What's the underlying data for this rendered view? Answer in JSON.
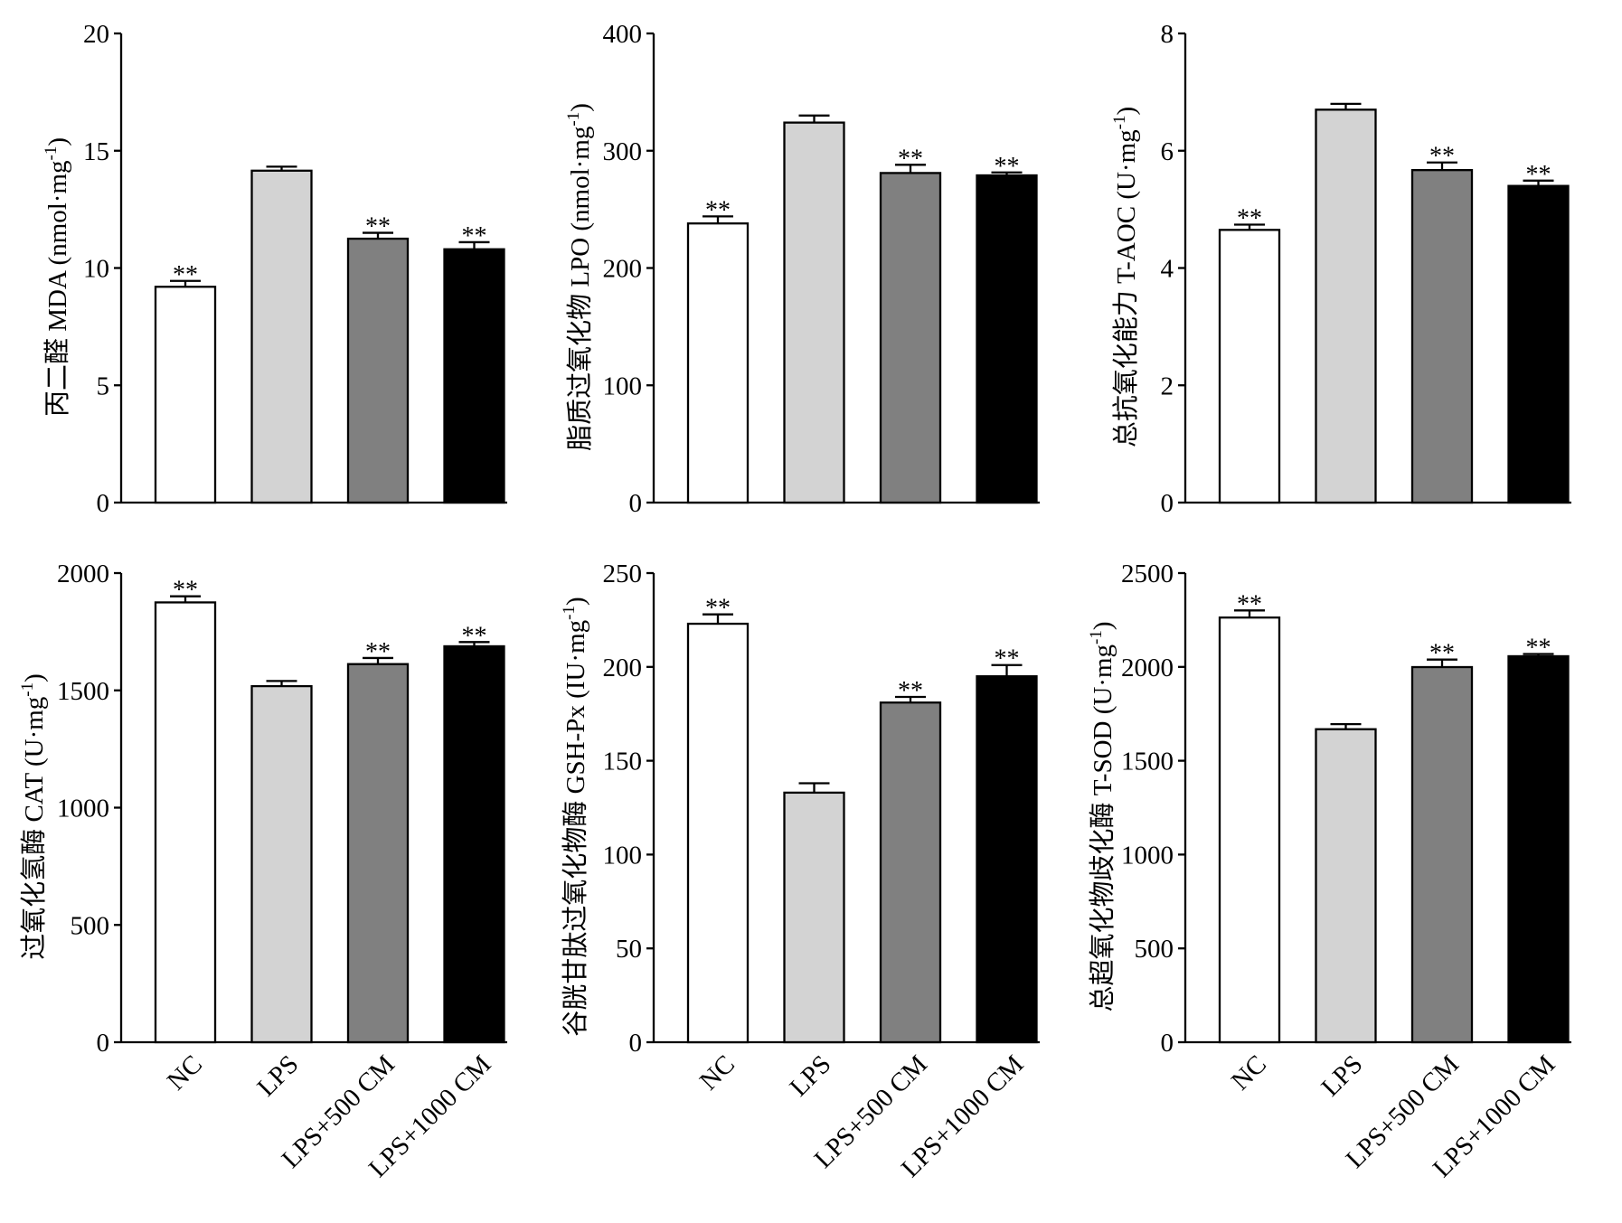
{
  "categories": [
    "NC",
    "LPS",
    "LPS+500 CM",
    "LPS+1000 CM"
  ],
  "bar_colors": [
    "#ffffff",
    "#d3d3d3",
    "#808080",
    "#000000"
  ],
  "chart_data": [
    {
      "type": "bar",
      "ylabel": {
        "text": "丙二醛 MDA (nmol·mg",
        "sup": "-1",
        "tail": ")"
      },
      "ylim": [
        0,
        20
      ],
      "yticks": [
        0,
        5,
        10,
        15,
        20
      ],
      "values": [
        9.2,
        14.15,
        11.25,
        10.8
      ],
      "errors": [
        0.25,
        0.17,
        0.25,
        0.3
      ],
      "significance": [
        "**",
        "",
        "**",
        "**"
      ]
    },
    {
      "type": "bar",
      "ylabel": {
        "text": "脂质过氧化物 LPO (nmol·mg",
        "sup": "-1",
        "tail": ")"
      },
      "ylim": [
        0,
        400
      ],
      "yticks": [
        0,
        100,
        200,
        300,
        400
      ],
      "values": [
        238,
        324,
        281,
        279
      ],
      "errors": [
        6,
        6,
        7,
        2.5
      ],
      "significance": [
        "**",
        "",
        "**",
        "**"
      ]
    },
    {
      "type": "bar",
      "ylabel": {
        "text": "总抗氧化能力 T-AOC (U·mg",
        "sup": "-1",
        "tail": ")"
      },
      "ylim": [
        0,
        8
      ],
      "yticks": [
        0,
        2,
        4,
        6,
        8
      ],
      "values": [
        4.65,
        6.7,
        5.67,
        5.4
      ],
      "errors": [
        0.09,
        0.1,
        0.13,
        0.09
      ],
      "significance": [
        "**",
        "",
        "**",
        "**"
      ]
    },
    {
      "type": "bar",
      "ylabel": {
        "text": "过氧化氢酶 CAT (U·mg",
        "sup": "-1",
        "tail": ")"
      },
      "ylim": [
        0,
        2000
      ],
      "yticks": [
        0,
        500,
        1000,
        1500,
        2000
      ],
      "values": [
        1875,
        1518,
        1612,
        1688
      ],
      "errors": [
        26,
        22,
        26,
        18
      ],
      "significance": [
        "**",
        "",
        "**",
        "**"
      ]
    },
    {
      "type": "bar",
      "ylabel": {
        "text": "谷胱甘肽过氧化物酶 GSH-Px (IU·mg",
        "sup": "-1",
        "tail": ")"
      },
      "ylim": [
        0,
        250
      ],
      "yticks": [
        0,
        50,
        100,
        150,
        200,
        250
      ],
      "values": [
        223,
        133,
        181,
        195
      ],
      "errors": [
        5,
        5,
        3,
        6
      ],
      "significance": [
        "**",
        "",
        "**",
        "**"
      ]
    },
    {
      "type": "bar",
      "ylabel": {
        "text": "总超氧化物歧化酶 T-SOD (U·mg",
        "sup": "-1",
        "tail": ")"
      },
      "ylim": [
        0,
        2500
      ],
      "yticks": [
        0,
        500,
        1000,
        1500,
        2000,
        2500
      ],
      "values": [
        2263,
        1668,
        1999,
        2057
      ],
      "errors": [
        38,
        27,
        40,
        12
      ],
      "significance": [
        "**",
        "",
        "**",
        "**"
      ]
    }
  ]
}
